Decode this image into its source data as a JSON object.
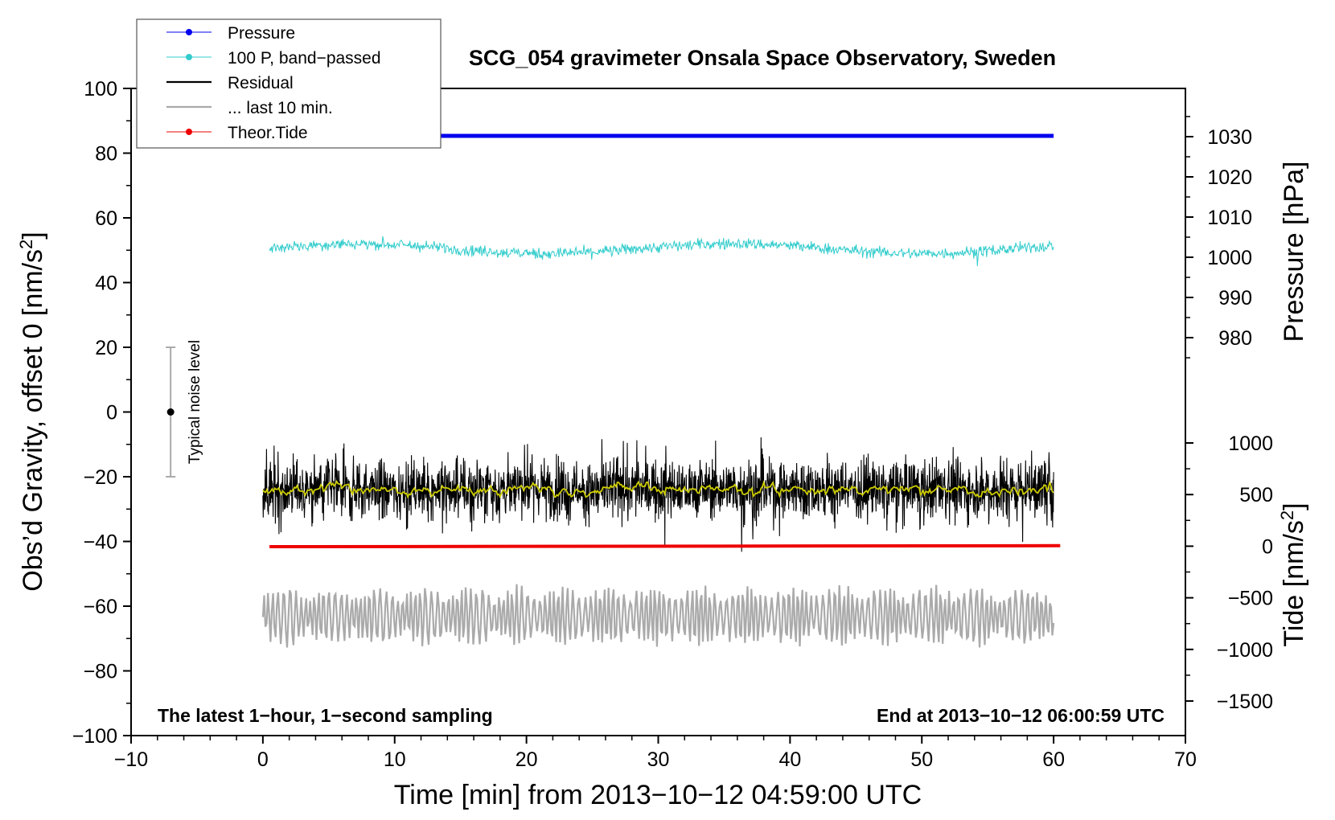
{
  "chart_data": {
    "type": "line",
    "title": "SCG_054 gravimeter Onsala Space Observatory, Sweden",
    "xlabel": "Time [min] from 2013−10−12 04:59:00 UTC",
    "ylabel_left": "Obs’d Gravity, offset 0 [nm/s",
    "ylabel_left_sup": "2",
    "ylabel_left_close": "]",
    "ylabel_right_pressure": "Pressure [hPa]",
    "ylabel_right_tide": "Tide [nm/s",
    "ylabel_right_tide_sup": "2",
    "ylabel_right_tide_close": "]",
    "xlim": [
      -10,
      70
    ],
    "ylim": [
      -100,
      100
    ],
    "pressure_ylim": [
      980,
      1030
    ],
    "tide_ylim": [
      -1500,
      1000
    ],
    "x_ticks": [
      "−10",
      "0",
      "10",
      "20",
      "30",
      "40",
      "50",
      "60",
      "70"
    ],
    "x_tick_values": [
      -10,
      0,
      10,
      20,
      30,
      40,
      50,
      60,
      70
    ],
    "y_ticks": [
      "100",
      "80",
      "60",
      "40",
      "20",
      "0",
      "−20",
      "−40",
      "−60",
      "−80",
      "−100"
    ],
    "y_tick_values": [
      100,
      80,
      60,
      40,
      20,
      0,
      -20,
      -40,
      -60,
      -80,
      -100
    ],
    "pressure_ticks": [
      "1030",
      "1020",
      "1010",
      "1000",
      "990",
      "980"
    ],
    "pressure_tick_values": [
      1030,
      1020,
      1010,
      1000,
      990,
      980
    ],
    "tide_ticks": [
      "1000",
      "500",
      "0",
      "−500",
      "−1000",
      "−1500"
    ],
    "tide_tick_values": [
      1000,
      500,
      0,
      -500,
      -1000,
      -1500
    ],
    "series": [
      {
        "name": "Pressure",
        "color": "#0000ee",
        "axis": "pressure",
        "x": [
          0.5,
          60
        ],
        "y": [
          1030.2,
          1030.2
        ]
      },
      {
        "name": "100 P, band−passed",
        "color": "#33cccc",
        "axis": "gravity",
        "x_range": [
          0.5,
          60
        ],
        "center": 50.5,
        "amplitude": 2.5
      },
      {
        "name": "Residual",
        "color": "#000000",
        "axis": "gravity",
        "x_range": [
          0,
          60
        ],
        "center": -24,
        "amplitude": 6
      },
      {
        "name": "... last 10 min.",
        "color": "#aaaaaa",
        "axis": "gravity",
        "x_range": [
          0,
          60
        ],
        "center": -63,
        "amplitude": 7
      },
      {
        "name": "Theor.Tide",
        "color": "#ee0000",
        "axis": "tide",
        "x": [
          0.5,
          60.5
        ],
        "y": [
          -5,
          5
        ]
      }
    ],
    "smoothed_residual_color": "#cccc00",
    "noise_level": {
      "label": "Typical noise level",
      "x": -7,
      "range": [
        -20,
        20
      ],
      "center": 0
    },
    "annotations": {
      "bottom_left": "The latest 1−hour, 1−second sampling",
      "bottom_right": "End at 2013−10−12 06:00:59 UTC"
    },
    "legend_placement": "top-left",
    "grid": false
  }
}
